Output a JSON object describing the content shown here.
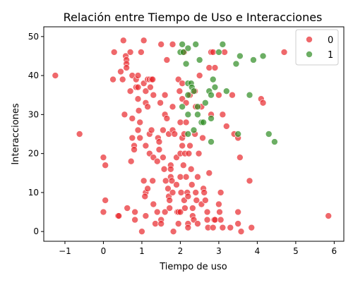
{
  "chart_data": {
    "type": "scatter",
    "title": "Relación entre Tiempo de Uso e Interacciones",
    "xlabel": "Tiempo de uso",
    "ylabel": "Interacciones",
    "xlim": [
      -1.55,
      6.25
    ],
    "ylim": [
      -2.5,
      52.5
    ],
    "xticks": [
      -1,
      0,
      1,
      2,
      3,
      4,
      5,
      6
    ],
    "yticks": [
      0,
      10,
      20,
      30,
      40,
      50
    ],
    "grid": false,
    "legend_position": "top-right",
    "series": [
      {
        "name": "0",
        "color": "#e8282c",
        "points": [
          [
            -1.25,
            40
          ],
          [
            -0.62,
            25
          ],
          [
            0.0,
            19
          ],
          [
            0.05,
            17
          ],
          [
            0.05,
            8
          ],
          [
            0.0,
            5
          ],
          [
            0.38,
            4
          ],
          [
            0.4,
            4
          ],
          [
            0.25,
            39
          ],
          [
            0.28,
            46
          ],
          [
            0.45,
            41
          ],
          [
            0.5,
            39
          ],
          [
            0.55,
            30
          ],
          [
            0.52,
            49
          ],
          [
            0.58,
            45
          ],
          [
            0.6,
            44
          ],
          [
            0.6,
            43
          ],
          [
            0.6,
            42
          ],
          [
            0.7,
            46
          ],
          [
            0.7,
            36
          ],
          [
            0.72,
            18
          ],
          [
            0.62,
            6
          ],
          [
            0.75,
            24
          ],
          [
            0.75,
            29
          ],
          [
            0.8,
            22
          ],
          [
            0.8,
            21
          ],
          [
            0.82,
            5
          ],
          [
            0.82,
            3
          ],
          [
            0.75,
            40
          ],
          [
            0.85,
            39
          ],
          [
            0.85,
            37
          ],
          [
            0.9,
            40
          ],
          [
            0.9,
            37
          ],
          [
            0.9,
            34
          ],
          [
            0.92,
            31
          ],
          [
            0.9,
            26
          ],
          [
            0.95,
            28
          ],
          [
            0.95,
            24
          ],
          [
            0.98,
            46
          ],
          [
            1.0,
            0
          ],
          [
            1.05,
            49
          ],
          [
            1.05,
            38
          ],
          [
            1.1,
            36
          ],
          [
            1.1,
            33
          ],
          [
            1.15,
            32
          ],
          [
            1.1,
            22
          ],
          [
            1.2,
            25
          ],
          [
            1.2,
            20
          ],
          [
            1.05,
            13
          ],
          [
            1.1,
            10
          ],
          [
            1.08,
            9
          ],
          [
            1.1,
            4
          ],
          [
            1.15,
            11
          ],
          [
            1.15,
            39
          ],
          [
            1.2,
            39
          ],
          [
            1.22,
            37
          ],
          [
            1.25,
            39
          ],
          [
            1.28,
            39
          ],
          [
            1.3,
            35
          ],
          [
            1.25,
            26
          ],
          [
            1.3,
            19
          ],
          [
            1.28,
            13
          ],
          [
            1.3,
            7
          ],
          [
            1.35,
            2
          ],
          [
            1.4,
            5
          ],
          [
            1.4,
            18
          ],
          [
            1.42,
            24
          ],
          [
            1.45,
            23
          ],
          [
            1.48,
            33
          ],
          [
            1.45,
            21
          ],
          [
            1.5,
            48
          ],
          [
            1.5,
            3
          ],
          [
            1.5,
            2
          ],
          [
            1.55,
            26
          ],
          [
            1.55,
            19
          ],
          [
            1.58,
            16
          ],
          [
            1.6,
            35
          ],
          [
            1.6,
            30
          ],
          [
            1.6,
            5
          ],
          [
            1.62,
            13
          ],
          [
            1.65,
            44
          ],
          [
            1.65,
            29
          ],
          [
            1.7,
            25
          ],
          [
            1.68,
            11
          ],
          [
            1.7,
            9
          ],
          [
            1.72,
            8
          ],
          [
            1.75,
            17
          ],
          [
            1.75,
            16
          ],
          [
            1.75,
            14
          ],
          [
            1.72,
            6
          ],
          [
            1.8,
            48
          ],
          [
            1.8,
            32
          ],
          [
            1.8,
            26
          ],
          [
            1.78,
            13
          ],
          [
            1.8,
            10
          ],
          [
            1.82,
            0
          ],
          [
            1.85,
            25
          ],
          [
            1.9,
            19
          ],
          [
            1.9,
            12
          ],
          [
            1.92,
            5
          ],
          [
            1.95,
            5
          ],
          [
            1.95,
            2
          ],
          [
            1.95,
            39
          ],
          [
            1.98,
            36
          ],
          [
            2.0,
            28
          ],
          [
            2.0,
            20
          ],
          [
            2.0,
            14
          ],
          [
            2.02,
            10
          ],
          [
            2.0,
            5
          ],
          [
            2.05,
            38
          ],
          [
            2.05,
            34
          ],
          [
            2.05,
            24
          ],
          [
            2.05,
            22
          ],
          [
            2.08,
            17
          ],
          [
            2.1,
            46
          ],
          [
            2.1,
            25
          ],
          [
            2.12,
            20
          ],
          [
            2.1,
            8
          ],
          [
            2.12,
            6
          ],
          [
            2.15,
            33
          ],
          [
            2.15,
            28
          ],
          [
            2.15,
            14
          ],
          [
            2.18,
            10
          ],
          [
            2.2,
            9
          ],
          [
            2.2,
            2
          ],
          [
            2.2,
            1
          ],
          [
            2.22,
            20
          ],
          [
            2.25,
            35
          ],
          [
            2.25,
            22
          ],
          [
            2.28,
            16
          ],
          [
            2.3,
            12
          ],
          [
            2.32,
            4
          ],
          [
            2.32,
            6
          ],
          [
            2.35,
            3
          ],
          [
            2.38,
            25
          ],
          [
            2.38,
            36
          ],
          [
            2.4,
            32
          ],
          [
            2.4,
            10
          ],
          [
            2.42,
            8
          ],
          [
            2.45,
            14
          ],
          [
            2.45,
            2
          ],
          [
            2.48,
            20
          ],
          [
            2.5,
            40
          ],
          [
            2.55,
            32
          ],
          [
            2.55,
            7
          ],
          [
            2.58,
            24
          ],
          [
            2.6,
            11
          ],
          [
            2.62,
            10
          ],
          [
            2.65,
            8
          ],
          [
            2.7,
            3
          ],
          [
            2.7,
            5
          ],
          [
            2.72,
            1
          ],
          [
            2.75,
            42
          ],
          [
            2.75,
            15
          ],
          [
            2.8,
            46
          ],
          [
            2.8,
            30
          ],
          [
            2.85,
            46
          ],
          [
            2.85,
            1
          ],
          [
            2.88,
            3
          ],
          [
            2.9,
            3
          ],
          [
            2.9,
            42
          ],
          [
            3.0,
            35
          ],
          [
            3.0,
            7
          ],
          [
            3.02,
            5
          ],
          [
            3.05,
            10
          ],
          [
            3.05,
            3
          ],
          [
            3.1,
            30
          ],
          [
            3.1,
            1
          ],
          [
            3.15,
            46
          ],
          [
            3.2,
            27
          ],
          [
            3.3,
            1
          ],
          [
            3.35,
            35
          ],
          [
            3.4,
            25
          ],
          [
            3.5,
            24
          ],
          [
            3.5,
            5
          ],
          [
            3.5,
            2
          ],
          [
            3.55,
            19
          ],
          [
            3.58,
            0
          ],
          [
            3.8,
            13
          ],
          [
            3.85,
            1
          ],
          [
            4.1,
            34
          ],
          [
            4.15,
            33
          ],
          [
            4.7,
            46
          ],
          [
            5.85,
            4
          ]
        ]
      },
      {
        "name": "1",
        "color": "#2e8b22",
        "points": [
          [
            2.0,
            46
          ],
          [
            2.05,
            48
          ],
          [
            2.08,
            46
          ],
          [
            2.05,
            32
          ],
          [
            2.15,
            43
          ],
          [
            2.2,
            47
          ],
          [
            2.2,
            38
          ],
          [
            2.2,
            35
          ],
          [
            2.2,
            30
          ],
          [
            2.2,
            25
          ],
          [
            2.28,
            38
          ],
          [
            2.3,
            37
          ],
          [
            2.35,
            36
          ],
          [
            2.35,
            26
          ],
          [
            2.4,
            48
          ],
          [
            2.45,
            32
          ],
          [
            2.45,
            30
          ],
          [
            2.5,
            44
          ],
          [
            2.55,
            28
          ],
          [
            2.6,
            28
          ],
          [
            2.65,
            33
          ],
          [
            2.75,
            36
          ],
          [
            2.8,
            35
          ],
          [
            2.8,
            29
          ],
          [
            2.8,
            23
          ],
          [
            2.85,
            39
          ],
          [
            2.9,
            37
          ],
          [
            3.0,
            46
          ],
          [
            3.1,
            48
          ],
          [
            3.2,
            36
          ],
          [
            3.45,
            43
          ],
          [
            3.5,
            25
          ],
          [
            3.55,
            45
          ],
          [
            3.8,
            35
          ],
          [
            3.9,
            44
          ],
          [
            4.15,
            45
          ],
          [
            4.3,
            25
          ],
          [
            4.45,
            23
          ]
        ]
      }
    ]
  }
}
